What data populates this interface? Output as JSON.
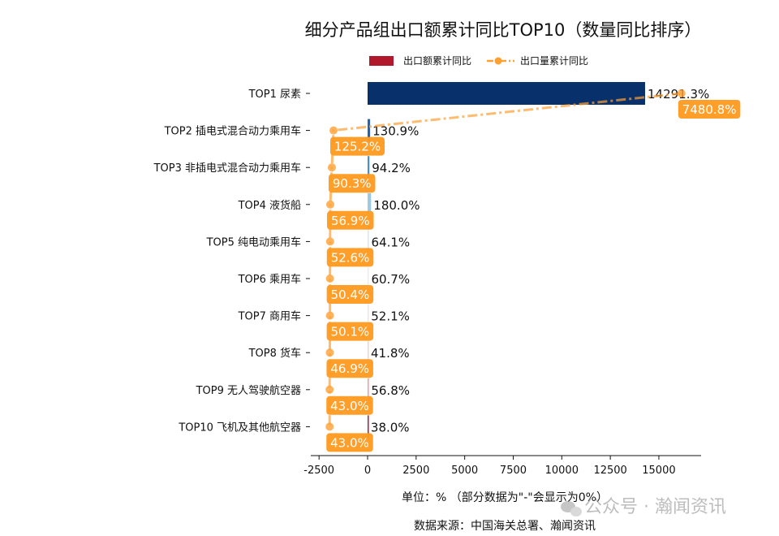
{
  "chart_data": {
    "type": "bar",
    "orientation": "horizontal",
    "title": "细分产品组出口额累计同比TOP10（数量同比排序）",
    "categories": [
      "TOP1 尿素",
      "TOP2 插电式混合动力乘用车",
      "TOP3 非插电式混合动力乘用车",
      "TOP4 液货船",
      "TOP5 纯电动乘用车",
      "TOP6 乘用车",
      "TOP7 商用车",
      "TOP8 货车",
      "TOP9 无人驾驶航空器",
      "TOP10 飞机及其他航空器"
    ],
    "series": [
      {
        "name": "出口额累计同比",
        "type": "bar",
        "values": [
          14291.3,
          130.9,
          94.2,
          180.0,
          64.1,
          60.7,
          52.1,
          41.8,
          56.8,
          38.0
        ],
        "labels": [
          "14291.3%",
          "130.9%",
          "94.2%",
          "180.0%",
          "64.1%",
          "60.7%",
          "52.1%",
          "41.8%",
          "56.8%",
          "38.0%"
        ],
        "colors": [
          "#08306b",
          "#2166ac",
          "#4a8fc8",
          "#9ecae1",
          "#d6e6f2",
          "#e8eef5",
          "#f2e4e4",
          "#f5d0d0",
          "#f29a9a",
          "#b2182b"
        ],
        "legend_color": "#b2182b"
      },
      {
        "name": "出口量累计同比",
        "type": "line",
        "values": [
          7480.8,
          125.2,
          90.3,
          56.9,
          52.6,
          50.4,
          50.1,
          46.9,
          43.0,
          43.0
        ],
        "labels": [
          "7480.8%",
          "125.2%",
          "90.3%",
          "56.9%",
          "52.6%",
          "50.4%",
          "50.1%",
          "46.9%",
          "43.0%",
          "43.0%"
        ],
        "color": "#ffa033",
        "line_style": "dash-dot"
      }
    ],
    "xlim": [
      -3300,
      17300
    ],
    "xticks": [
      "-2500",
      "0",
      "2500",
      "5000",
      "7500",
      "10000",
      "12500",
      "15000"
    ],
    "xtick_values": [
      -2500,
      0,
      2500,
      5000,
      7500,
      10000,
      12500,
      15000
    ],
    "xlabel": "单位：%  （部分数据为\"-\"会显示为0%）",
    "source": "数据来源：中国海关总署、瀚闻资讯",
    "legend_placement": "top",
    "grid": false
  },
  "watermark": "公众号 · 瀚闻资讯"
}
